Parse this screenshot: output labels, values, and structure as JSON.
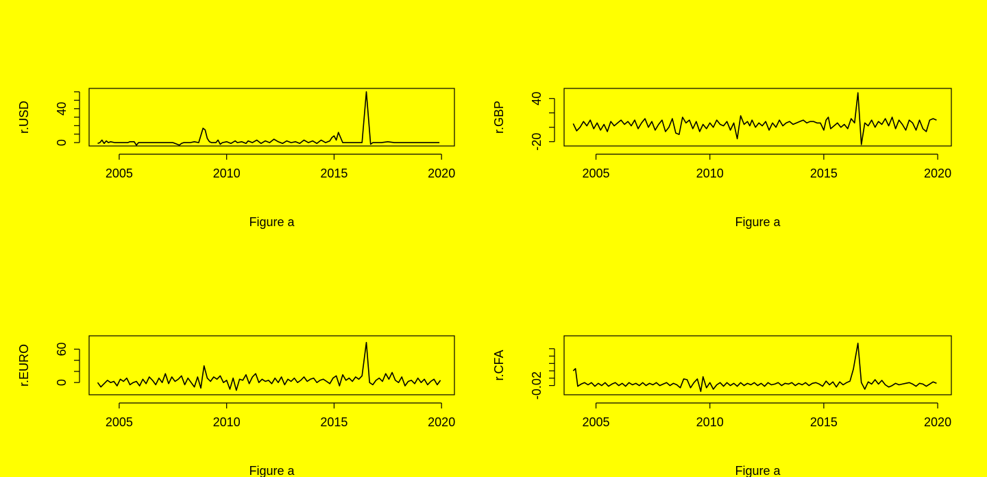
{
  "page": {
    "background": "#ffff00",
    "line_color": "#000000"
  },
  "chart_data": [
    {
      "type": "line",
      "ylabel": "r.USD",
      "xlabel": "Figure a",
      "x_ticks": [
        2005,
        2010,
        2015,
        2020
      ],
      "y_ticks": [
        0,
        40
      ],
      "y_minor_ticks": [
        10,
        20,
        30,
        50,
        60
      ],
      "xlim": [
        2003.6,
        2020.6
      ],
      "ylim": [
        -4,
        64
      ],
      "series": [
        {
          "x": [
            2004.0,
            2004.1,
            2004.2,
            2004.3,
            2004.4,
            2004.5,
            2004.6,
            2004.8,
            2005.0,
            2005.4,
            2005.5,
            2005.7,
            2005.8,
            2005.9,
            2006.0,
            2006.5,
            2007.0,
            2007.5,
            2007.8,
            2007.9,
            2008.0,
            2008.3,
            2008.5,
            2008.7,
            2008.9,
            2009.0,
            2009.1,
            2009.2,
            2009.3,
            2009.5,
            2009.6,
            2009.7,
            2009.8,
            2010.0,
            2010.2,
            2010.4,
            2010.5,
            2010.7,
            2010.9,
            2011.0,
            2011.2,
            2011.4,
            2011.6,
            2011.8,
            2012.0,
            2012.2,
            2012.4,
            2012.6,
            2012.8,
            2013.0,
            2013.2,
            2013.4,
            2013.6,
            2013.8,
            2014.0,
            2014.2,
            2014.4,
            2014.6,
            2014.8,
            2014.9,
            2015.0,
            2015.1,
            2015.2,
            2015.4,
            2015.6,
            2015.8,
            2016.0,
            2016.2,
            2016.3,
            2016.5,
            2016.7,
            2016.8,
            2017.0,
            2017.2,
            2017.5,
            2017.8,
            2017.9,
            2018.0,
            2018.5,
            2019.0,
            2019.5,
            2019.9
          ],
          "values": [
            -1,
            0,
            3,
            -1,
            2,
            0,
            1,
            0,
            0,
            0,
            1,
            1,
            -3,
            0,
            0,
            0,
            0,
            0,
            -3,
            -1,
            0,
            0,
            1,
            0,
            17,
            15,
            5,
            1,
            0,
            0,
            3,
            -2,
            0,
            1,
            -1,
            2,
            0,
            1,
            -1,
            2,
            0,
            3,
            -1,
            2,
            0,
            4,
            1,
            -1,
            2,
            0,
            1,
            -1,
            3,
            0,
            2,
            -1,
            3,
            0,
            2,
            6,
            8,
            3,
            12,
            0,
            0,
            0,
            0,
            0,
            0,
            60,
            -2,
            0,
            0,
            0,
            1,
            0,
            0,
            0,
            0,
            0,
            0,
            0
          ]
        }
      ]
    },
    {
      "type": "line",
      "ylabel": "r.GBP",
      "xlabel": "Figure a",
      "x_ticks": [
        2005,
        2010,
        2015,
        2020
      ],
      "y_ticks": [
        -20,
        40
      ],
      "y_minor_ticks": [
        0,
        20
      ],
      "xlim": [
        2003.6,
        2020.6
      ],
      "ylim": [
        -26,
        54
      ],
      "series": [
        {
          "x": [
            2004.0,
            2004.15,
            2004.3,
            2004.45,
            2004.6,
            2004.75,
            2004.9,
            2005.05,
            2005.2,
            2005.35,
            2005.5,
            2005.65,
            2005.8,
            2005.95,
            2006.1,
            2006.25,
            2006.4,
            2006.55,
            2006.7,
            2006.85,
            2007.0,
            2007.15,
            2007.3,
            2007.45,
            2007.6,
            2007.75,
            2007.9,
            2008.05,
            2008.2,
            2008.35,
            2008.5,
            2008.65,
            2008.8,
            2008.95,
            2009.1,
            2009.25,
            2009.4,
            2009.55,
            2009.7,
            2009.85,
            2010.0,
            2010.15,
            2010.3,
            2010.45,
            2010.6,
            2010.75,
            2010.9,
            2011.05,
            2011.2,
            2011.35,
            2011.5,
            2011.65,
            2011.75,
            2011.85,
            2012.0,
            2012.15,
            2012.3,
            2012.45,
            2012.6,
            2012.75,
            2012.9,
            2013.05,
            2013.2,
            2013.35,
            2013.5,
            2013.65,
            2013.8,
            2013.95,
            2014.1,
            2014.25,
            2014.4,
            2014.55,
            2014.7,
            2014.85,
            2015.0,
            2015.1,
            2015.2,
            2015.3,
            2015.45,
            2015.6,
            2015.75,
            2015.9,
            2016.05,
            2016.2,
            2016.35,
            2016.5,
            2016.65,
            2016.8,
            2016.95,
            2017.1,
            2017.25,
            2017.4,
            2017.55,
            2017.7,
            2017.85,
            2018.0,
            2018.15,
            2018.3,
            2018.45,
            2018.6,
            2018.75,
            2018.9,
            2019.05,
            2019.2,
            2019.35,
            2019.5,
            2019.65,
            2019.8,
            2019.95
          ],
          "values": [
            5,
            -5,
            0,
            8,
            2,
            10,
            -2,
            6,
            -4,
            4,
            -6,
            8,
            2,
            6,
            10,
            4,
            8,
            2,
            10,
            -2,
            6,
            12,
            0,
            8,
            -4,
            4,
            10,
            -6,
            0,
            12,
            -8,
            -10,
            14,
            6,
            10,
            -2,
            8,
            -6,
            4,
            -2,
            6,
            0,
            10,
            4,
            2,
            8,
            -4,
            6,
            -16,
            16,
            4,
            8,
            2,
            10,
            0,
            6,
            2,
            8,
            -4,
            6,
            0,
            10,
            2,
            6,
            8,
            4,
            6,
            8,
            10,
            6,
            8,
            8,
            6,
            6,
            -4,
            10,
            14,
            -2,
            2,
            6,
            0,
            4,
            -2,
            12,
            6,
            48,
            -24,
            6,
            2,
            10,
            0,
            8,
            4,
            12,
            2,
            14,
            -2,
            10,
            4,
            -4,
            10,
            6,
            -4,
            10,
            -2,
            -6,
            10,
            12,
            10
          ]
        }
      ]
    },
    {
      "type": "line",
      "ylabel": "r.EURO",
      "xlabel": "Figure a",
      "x_ticks": [
        2005,
        2010,
        2015,
        2020
      ],
      "y_ticks": [
        0,
        60
      ],
      "y_minor_ticks": [
        20,
        40
      ],
      "xlim": [
        2003.6,
        2020.6
      ],
      "ylim": [
        -22,
        84
      ],
      "series": [
        {
          "x": [
            2004.0,
            2004.15,
            2004.3,
            2004.45,
            2004.6,
            2004.75,
            2004.9,
            2005.05,
            2005.2,
            2005.35,
            2005.5,
            2005.65,
            2005.8,
            2005.95,
            2006.1,
            2006.25,
            2006.4,
            2006.55,
            2006.7,
            2006.85,
            2007.0,
            2007.15,
            2007.3,
            2007.45,
            2007.6,
            2007.75,
            2007.9,
            2008.05,
            2008.2,
            2008.35,
            2008.5,
            2008.65,
            2008.8,
            2008.95,
            2009.1,
            2009.25,
            2009.4,
            2009.55,
            2009.7,
            2009.85,
            2010.0,
            2010.15,
            2010.3,
            2010.45,
            2010.6,
            2010.75,
            2010.9,
            2011.05,
            2011.2,
            2011.35,
            2011.5,
            2011.65,
            2011.8,
            2011.95,
            2012.1,
            2012.25,
            2012.4,
            2012.55,
            2012.7,
            2012.85,
            2013.0,
            2013.15,
            2013.3,
            2013.45,
            2013.6,
            2013.75,
            2013.9,
            2014.05,
            2014.2,
            2014.35,
            2014.5,
            2014.65,
            2014.8,
            2014.95,
            2015.1,
            2015.25,
            2015.4,
            2015.55,
            2015.7,
            2015.85,
            2016.0,
            2016.15,
            2016.3,
            2016.5,
            2016.65,
            2016.8,
            2016.95,
            2017.1,
            2017.25,
            2017.4,
            2017.55,
            2017.7,
            2017.85,
            2018.0,
            2018.15,
            2018.3,
            2018.45,
            2018.6,
            2018.75,
            2018.9,
            2019.05,
            2019.2,
            2019.35,
            2019.5,
            2019.65,
            2019.8,
            2019.95
          ],
          "values": [
            0,
            -8,
            -2,
            4,
            0,
            2,
            -6,
            6,
            2,
            8,
            -4,
            0,
            2,
            -6,
            6,
            -2,
            10,
            4,
            -4,
            8,
            0,
            16,
            -2,
            10,
            2,
            6,
            12,
            -4,
            8,
            0,
            -8,
            10,
            -10,
            30,
            8,
            2,
            10,
            6,
            12,
            0,
            4,
            -12,
            8,
            -14,
            6,
            4,
            14,
            -2,
            10,
            16,
            0,
            6,
            2,
            4,
            -2,
            8,
            0,
            10,
            -4,
            6,
            2,
            8,
            0,
            4,
            10,
            2,
            6,
            8,
            0,
            4,
            6,
            2,
            -2,
            8,
            12,
            -6,
            14,
            4,
            8,
            2,
            10,
            6,
            12,
            72,
            0,
            -4,
            4,
            8,
            2,
            16,
            6,
            18,
            4,
            0,
            10,
            -6,
            2,
            4,
            -2,
            8,
            0,
            6,
            -4,
            2,
            6,
            -4,
            4
          ]
        }
      ]
    },
    {
      "type": "line",
      "ylabel": "r.CFA",
      "xlabel": "Figure a",
      "x_ticks": [
        2005,
        2010,
        2015,
        2020
      ],
      "y_ticks": [
        -0.02
      ],
      "y_minor_ticks": [
        0.0,
        0.02,
        0.04,
        0.06,
        0.08
      ],
      "xlim": [
        2003.6,
        2020.6
      ],
      "ylim": [
        -0.045,
        0.115
      ],
      "series": [
        {
          "x": [
            2004.0,
            2004.1,
            2004.2,
            2004.35,
            2004.5,
            2004.65,
            2004.8,
            2004.95,
            2005.1,
            2005.25,
            2005.4,
            2005.55,
            2005.7,
            2005.85,
            2006.0,
            2006.15,
            2006.3,
            2006.45,
            2006.6,
            2006.75,
            2006.9,
            2007.05,
            2007.2,
            2007.35,
            2007.5,
            2007.65,
            2007.8,
            2007.95,
            2008.1,
            2008.25,
            2008.4,
            2008.55,
            2008.7,
            2008.85,
            2009.0,
            2009.15,
            2009.3,
            2009.45,
            2009.6,
            2009.7,
            2009.85,
            2010.0,
            2010.15,
            2010.3,
            2010.45,
            2010.6,
            2010.75,
            2010.9,
            2011.05,
            2011.2,
            2011.35,
            2011.5,
            2011.65,
            2011.8,
            2011.95,
            2012.1,
            2012.25,
            2012.4,
            2012.55,
            2012.7,
            2012.85,
            2013.0,
            2013.15,
            2013.3,
            2013.45,
            2013.6,
            2013.75,
            2013.9,
            2014.05,
            2014.2,
            2014.35,
            2014.5,
            2014.65,
            2014.8,
            2014.95,
            2015.1,
            2015.25,
            2015.4,
            2015.55,
            2015.7,
            2015.85,
            2016.0,
            2016.15,
            2016.3,
            2016.5,
            2016.65,
            2016.8,
            2016.95,
            2017.1,
            2017.25,
            2017.4,
            2017.55,
            2017.7,
            2017.85,
            2018.0,
            2018.15,
            2018.3,
            2018.45,
            2018.6,
            2018.75,
            2018.9,
            2019.05,
            2019.2,
            2019.35,
            2019.5,
            2019.65,
            2019.8,
            2019.95
          ],
          "values": [
            0.02,
            0.026,
            -0.022,
            -0.016,
            -0.012,
            -0.018,
            -0.012,
            -0.022,
            -0.014,
            -0.02,
            -0.012,
            -0.022,
            -0.016,
            -0.012,
            -0.02,
            -0.014,
            -0.022,
            -0.012,
            -0.018,
            -0.014,
            -0.02,
            -0.012,
            -0.02,
            -0.014,
            -0.018,
            -0.012,
            -0.02,
            -0.016,
            -0.012,
            -0.02,
            -0.014,
            -0.018,
            -0.026,
            -0.002,
            -0.004,
            -0.026,
            -0.012,
            -0.002,
            -0.036,
            0.004,
            -0.026,
            -0.012,
            -0.03,
            -0.018,
            -0.012,
            -0.022,
            -0.012,
            -0.02,
            -0.014,
            -0.022,
            -0.012,
            -0.02,
            -0.014,
            -0.018,
            -0.012,
            -0.02,
            -0.014,
            -0.022,
            -0.012,
            -0.018,
            -0.016,
            -0.012,
            -0.02,
            -0.014,
            -0.016,
            -0.012,
            -0.02,
            -0.014,
            -0.018,
            -0.012,
            -0.02,
            -0.014,
            -0.012,
            -0.016,
            -0.022,
            -0.008,
            -0.018,
            -0.01,
            -0.024,
            -0.01,
            -0.018,
            -0.012,
            -0.008,
            0.025,
            0.095,
            -0.012,
            -0.03,
            -0.01,
            -0.016,
            -0.004,
            -0.016,
            -0.006,
            -0.018,
            -0.024,
            -0.02,
            -0.014,
            -0.018,
            -0.016,
            -0.014,
            -0.012,
            -0.016,
            -0.022,
            -0.014,
            -0.016,
            -0.022,
            -0.016,
            -0.01,
            -0.014
          ]
        }
      ]
    }
  ]
}
